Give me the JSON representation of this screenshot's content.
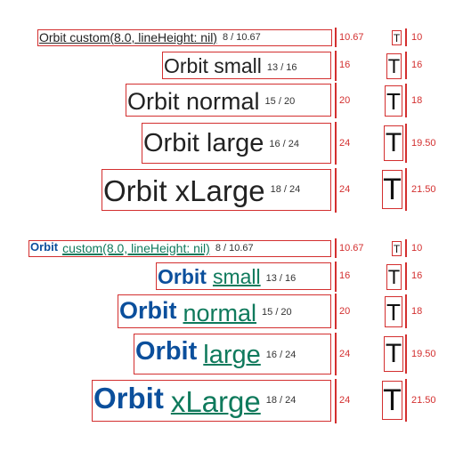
{
  "section1": {
    "rows": [
      {
        "label": "Orbit custom(8.0, lineHeight: nil)",
        "meta": "8 / 10.67",
        "lh": "10.67",
        "t_glyph": "T",
        "t_height": "10"
      },
      {
        "label": "Orbit small",
        "meta": "13 / 16",
        "lh": "16",
        "t_glyph": "T",
        "t_height": "16"
      },
      {
        "label": "Orbit normal",
        "meta": "15 / 20",
        "lh": "20",
        "t_glyph": "T",
        "t_height": "18"
      },
      {
        "label": "Orbit large",
        "meta": "16 / 24",
        "lh": "24",
        "t_glyph": "T",
        "t_height": "19.50"
      },
      {
        "label": "Orbit xLarge",
        "meta": "18 / 24",
        "lh": "24",
        "t_glyph": "T",
        "t_height": "21.50"
      }
    ]
  },
  "section2": {
    "rows": [
      {
        "bold": "Orbit",
        "link": "custom(8.0, lineHeight: nil)",
        "meta": "8 / 10.67",
        "lh": "10.67",
        "t_glyph": "T",
        "t_height": "10"
      },
      {
        "bold": "Orbit",
        "link": "small",
        "meta": "13 / 16",
        "lh": "16",
        "t_glyph": "T",
        "t_height": "16"
      },
      {
        "bold": "Orbit",
        "link": "normal",
        "meta": "15 / 20",
        "lh": "20",
        "t_glyph": "T",
        "t_height": "18"
      },
      {
        "bold": "Orbit",
        "link": "large",
        "meta": "16 / 24",
        "lh": "24",
        "t_glyph": "T",
        "t_height": "19.50"
      },
      {
        "bold": "Orbit",
        "link": "xLarge",
        "meta": "18 / 24",
        "lh": "24",
        "t_glyph": "T",
        "t_height": "21.50"
      }
    ]
  },
  "colors": {
    "guide": "#d32f2f",
    "bold_text": "#0b4f9c",
    "link_text": "#0f7a5c"
  }
}
